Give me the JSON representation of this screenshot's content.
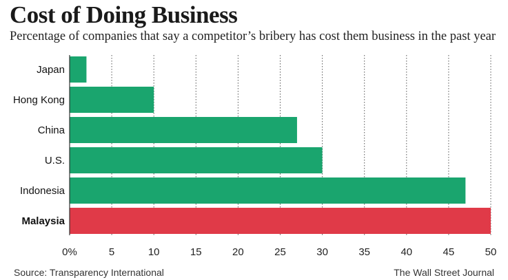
{
  "header": {
    "title": "Cost of Doing Business",
    "subtitle": "Percentage of companies that say a competitor’s bribery has cost them business in the past year"
  },
  "footer": {
    "source": "Source: Transparency International",
    "credit": "The Wall Street Journal"
  },
  "colors": {
    "bar": "#1aa56e",
    "highlight": "#e03a48",
    "grid": "#555555"
  },
  "chart_data": {
    "type": "bar",
    "orientation": "horizontal",
    "categories": [
      "Japan",
      "Hong Kong",
      "China",
      "U.S.",
      "Indonesia",
      "Malaysia"
    ],
    "values": [
      2,
      10,
      27,
      30,
      47,
      50
    ],
    "highlight": "Malaysia",
    "xlim": [
      0,
      50
    ],
    "x_ticks": [
      0,
      5,
      10,
      15,
      20,
      25,
      30,
      35,
      40,
      45,
      50
    ],
    "x_tick_labels": [
      "0%",
      "5",
      "10",
      "15",
      "20",
      "25",
      "30",
      "35",
      "40",
      "45",
      "50"
    ],
    "grid": true
  }
}
